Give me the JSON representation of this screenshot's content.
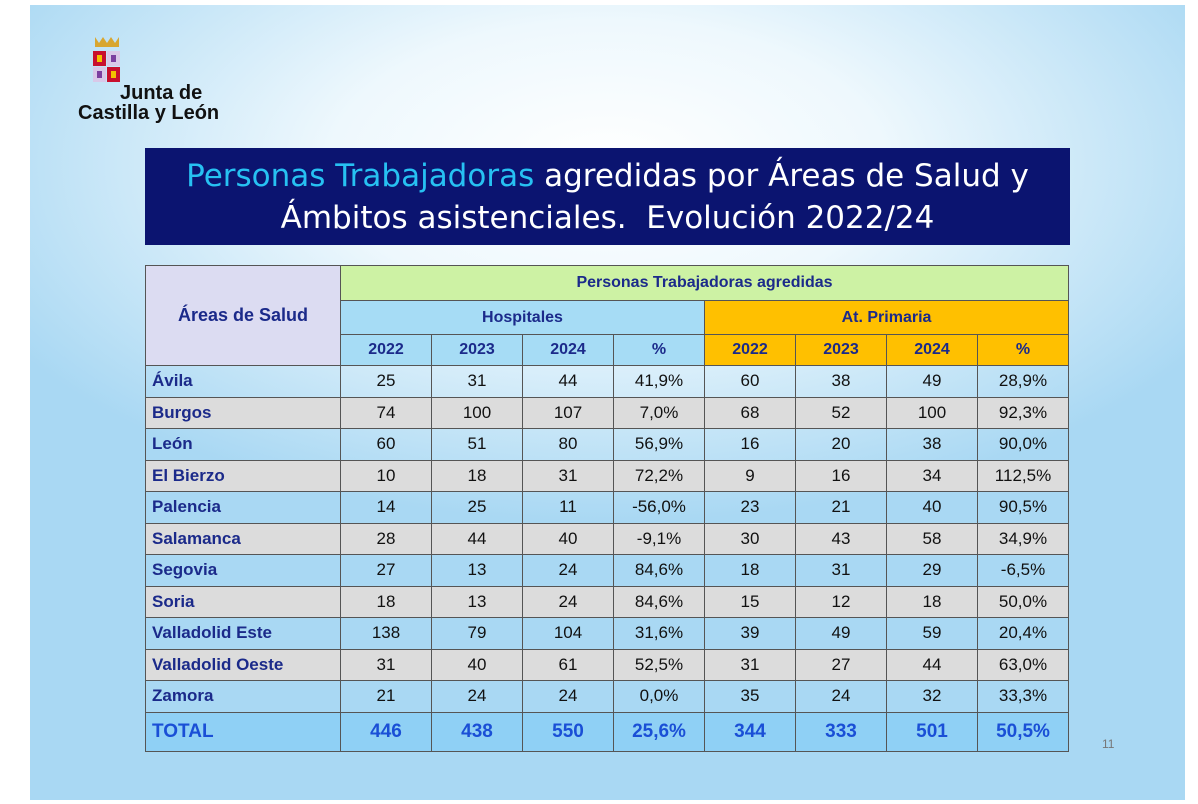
{
  "logo": {
    "line1": "Junta de",
    "line2": "Castilla y León"
  },
  "title": {
    "highlight": "Personas Trabajadoras",
    "line1_rest": " agredidas por Áreas de Salud y",
    "line2": "Ámbitos asistenciales.  Evolución 2022/24"
  },
  "table": {
    "area_header": "Áreas de Salud",
    "group_header": "Personas Trabajadoras agredidas",
    "subgroups": [
      "Hospitales",
      "At. Primaria"
    ],
    "columns": [
      "2022",
      "2023",
      "2024",
      "%",
      "2022",
      "2023",
      "2024",
      "%"
    ],
    "rows": [
      [
        "Ávila",
        "25",
        "31",
        "44",
        "41,9%",
        "60",
        "38",
        "49",
        "28,9%"
      ],
      [
        "Burgos",
        "74",
        "100",
        "107",
        "7,0%",
        "68",
        "52",
        "100",
        "92,3%"
      ],
      [
        "León",
        "60",
        "51",
        "80",
        "56,9%",
        "16",
        "20",
        "38",
        "90,0%"
      ],
      [
        "El Bierzo",
        "10",
        "18",
        "31",
        "72,2%",
        "9",
        "16",
        "34",
        "112,5%"
      ],
      [
        "Palencia",
        "14",
        "25",
        "11",
        "-56,0%",
        "23",
        "21",
        "40",
        "90,5%"
      ],
      [
        "Salamanca",
        "28",
        "44",
        "40",
        "-9,1%",
        "30",
        "43",
        "58",
        "34,9%"
      ],
      [
        "Segovia",
        "27",
        "13",
        "24",
        "84,6%",
        "18",
        "31",
        "29",
        "-6,5%"
      ],
      [
        "Soria",
        "18",
        "13",
        "24",
        "84,6%",
        "15",
        "12",
        "18",
        "50,0%"
      ],
      [
        "Valladolid Este",
        "138",
        "79",
        "104",
        "31,6%",
        "39",
        "49",
        "59",
        "20,4%"
      ],
      [
        "Valladolid Oeste",
        "31",
        "40",
        "61",
        "52,5%",
        "31",
        "27",
        "44",
        "63,0%"
      ],
      [
        "Zamora",
        "21",
        "24",
        "24",
        "0,0%",
        "35",
        "24",
        "32",
        "33,3%"
      ]
    ],
    "total": [
      "TOTAL",
      "446",
      "438",
      "550",
      "25,6%",
      "344",
      "333",
      "501",
      "50,5%"
    ]
  },
  "page_number": "11"
}
